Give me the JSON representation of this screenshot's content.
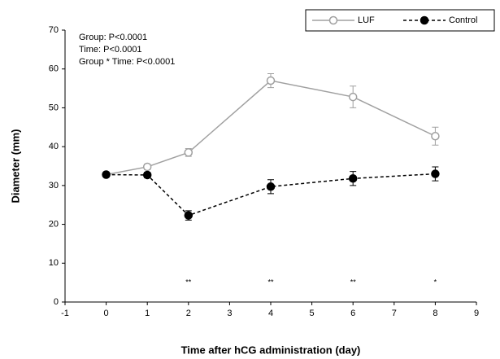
{
  "chart_data": {
    "type": "line",
    "x_label": "Time after hCG administration (day)",
    "y_label": "Diameter (mm)",
    "x": [
      0,
      1,
      2,
      4,
      6,
      8
    ],
    "series": [
      {
        "name": "LUF",
        "color": "#a0a0a0",
        "line_style": "solid",
        "marker": "open-circle",
        "values": [
          32.8,
          34.8,
          38.5,
          57,
          52.8,
          42.7
        ],
        "errors": [
          0.5,
          0.7,
          1,
          1.8,
          2.8,
          2.3
        ]
      },
      {
        "name": "Control",
        "color": "#000000",
        "line_style": "dashed",
        "marker": "filled-circle",
        "values": [
          32.8,
          32.7,
          22.3,
          29.7,
          31.8,
          33
        ],
        "errors": [
          0.6,
          0.7,
          1.2,
          1.8,
          1.8,
          1.8
        ]
      }
    ],
    "xlim": [
      -1,
      9
    ],
    "xticks": [
      -1,
      0,
      1,
      2,
      3,
      4,
      5,
      6,
      7,
      8,
      9
    ],
    "ylim": [
      0,
      70
    ],
    "yticks": [
      0,
      10,
      20,
      30,
      40,
      50,
      60,
      70
    ],
    "grid": false,
    "legend": "top-right",
    "annotations": [
      "Group: P<0.0001",
      "Time: P<0.0001",
      "Group * Time: P<0.0001"
    ],
    "significance": [
      {
        "text": "**",
        "x": 2,
        "y": 5
      },
      {
        "text": "**",
        "x": 4,
        "y": 5
      },
      {
        "text": "**",
        "x": 6,
        "y": 5
      },
      {
        "text": "*",
        "x": 8,
        "y": 5
      }
    ]
  }
}
